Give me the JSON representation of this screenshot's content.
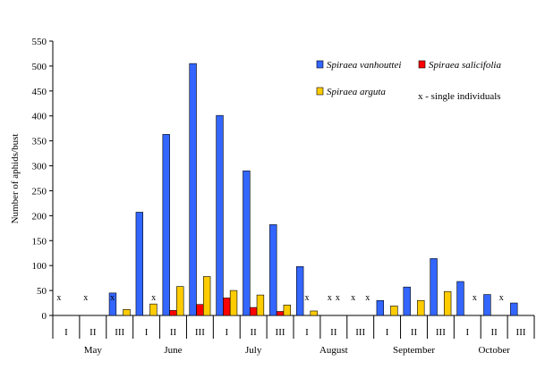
{
  "chart_data": {
    "type": "bar",
    "title": "",
    "ylabel": "Number of aphids/bust",
    "xlabel": "",
    "ylim": [
      0,
      550
    ],
    "yticks": [
      0,
      50,
      100,
      150,
      200,
      250,
      300,
      350,
      400,
      450,
      500,
      550
    ],
    "grid": false,
    "legend_position": "top-right",
    "categories": [
      "I",
      "II",
      "III",
      "I",
      "II",
      "III",
      "I",
      "II",
      "III",
      "I",
      "II",
      "III",
      "I",
      "II",
      "III",
      "I",
      "II",
      "III"
    ],
    "months": [
      {
        "label": "May",
        "start": 0,
        "span": 3
      },
      {
        "label": "June",
        "start": 3,
        "span": 3
      },
      {
        "label": "July",
        "start": 6,
        "span": 3
      },
      {
        "label": "August",
        "start": 9,
        "span": 3
      },
      {
        "label": "September",
        "start": 12,
        "span": 3
      },
      {
        "label": "October",
        "start": 15,
        "span": 3
      }
    ],
    "series": [
      {
        "name": "Spiraea vanhouttei",
        "color": "#3366ff",
        "values": [
          0,
          0,
          45,
          207,
          363,
          505,
          401,
          290,
          182,
          98,
          0,
          0,
          30,
          57,
          114,
          68,
          42,
          25
        ]
      },
      {
        "name": "Spiraea salicifolia",
        "color": "#ff0000",
        "values": [
          0,
          0,
          0,
          0,
          10,
          22,
          35,
          16,
          8,
          0,
          0,
          0,
          0,
          0,
          0,
          0,
          0,
          0
        ]
      },
      {
        "name": "Spiraea arguta",
        "color": "#ffcc00",
        "values": [
          0,
          0,
          12,
          23,
          58,
          78,
          50,
          41,
          21,
          9,
          0,
          0,
          19,
          30,
          48,
          0,
          0,
          0
        ]
      }
    ],
    "single_individual_marks": [
      {
        "category": 0,
        "offset": -0.27
      },
      {
        "category": 1,
        "offset": -0.27
      },
      {
        "category": 2,
        "offset": -0.27
      },
      {
        "category": 3,
        "offset": 0.27
      },
      {
        "category": 9,
        "offset": 0.0
      },
      {
        "category": 10,
        "offset": -0.15
      },
      {
        "category": 10,
        "offset": 0.15
      },
      {
        "category": 11,
        "offset": -0.27
      },
      {
        "category": 11,
        "offset": 0.27
      },
      {
        "category": 15,
        "offset": 0.27
      },
      {
        "category": 16,
        "offset": 0.27
      }
    ],
    "mark_symbol": "x",
    "annotation": "x - single individuals"
  }
}
